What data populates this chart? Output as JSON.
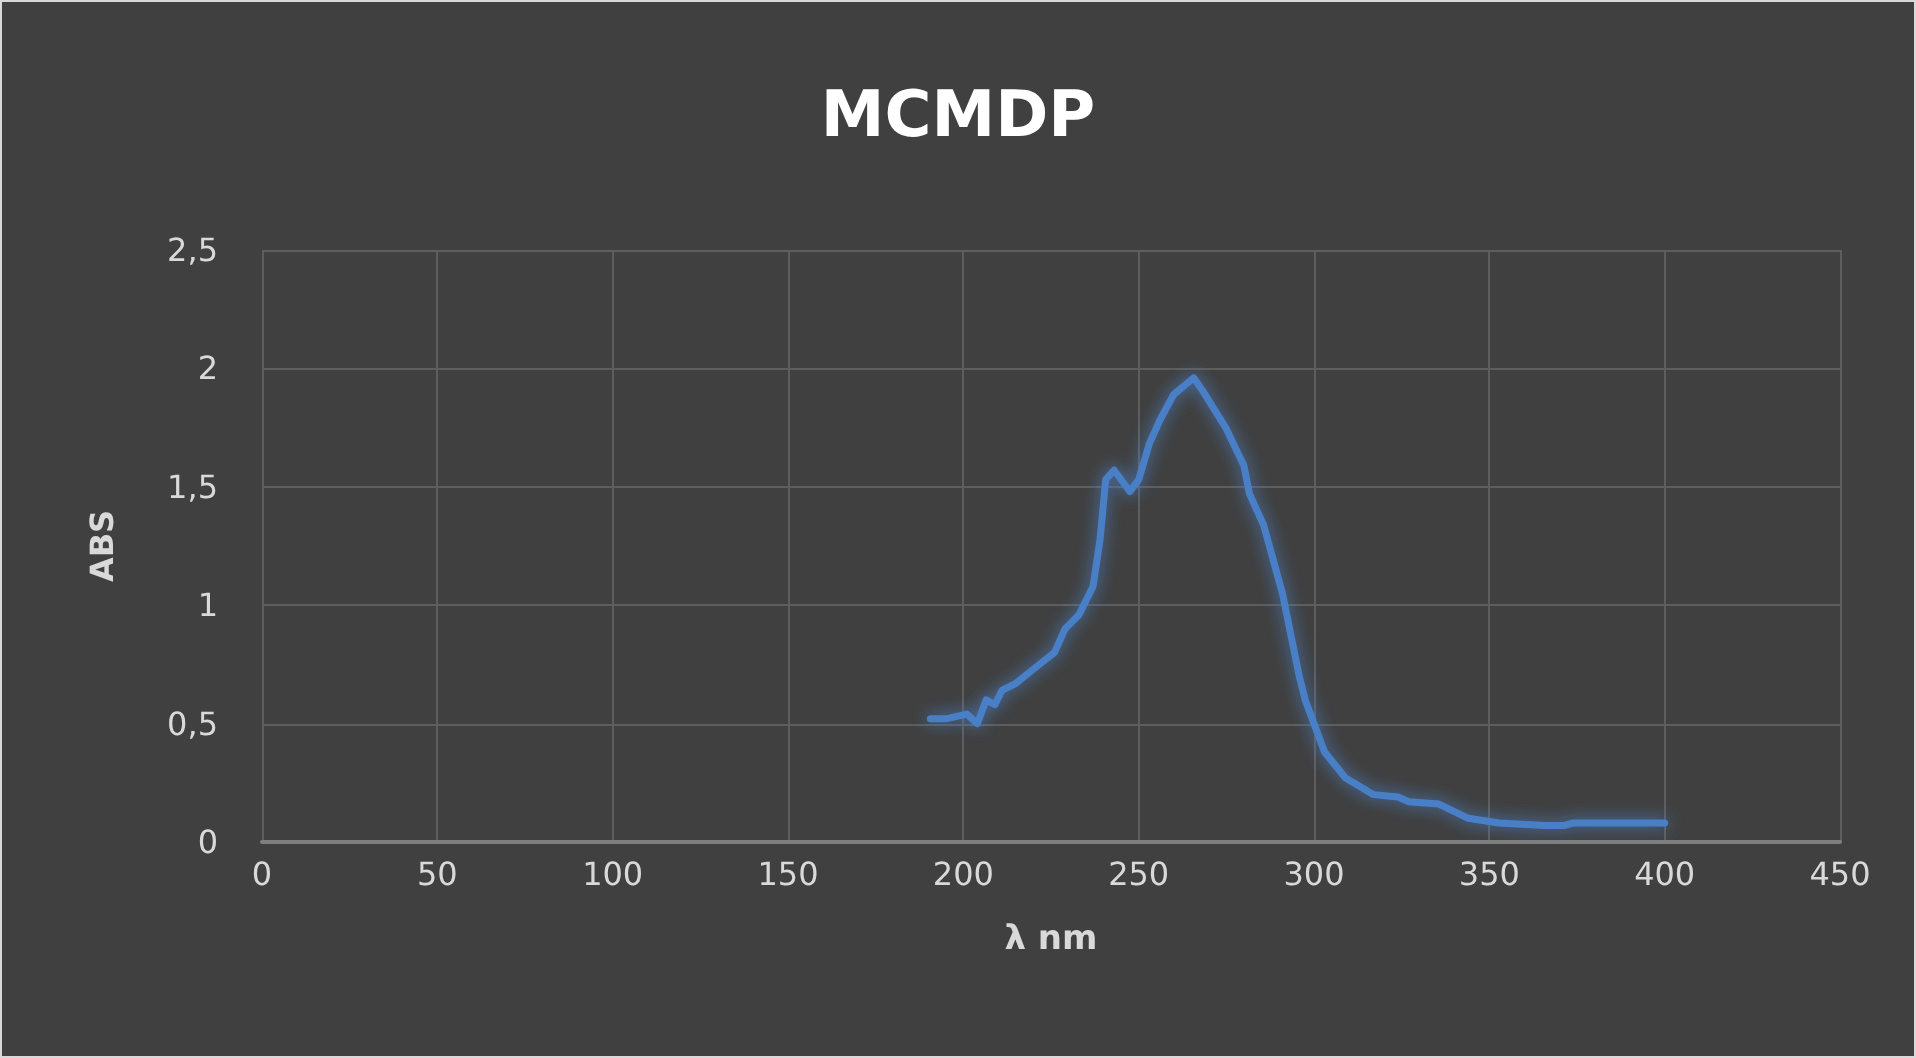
{
  "chart_data": {
    "type": "line",
    "title": "MCMDP",
    "xlabel": "λ nm",
    "ylabel": "ABS",
    "xlim": [
      0,
      450
    ],
    "xticks": [
      0,
      50,
      100,
      150,
      200,
      250,
      300,
      350,
      400,
      450
    ],
    "ylim": [
      0,
      2.5
    ],
    "yticks": [
      {
        "value": 0,
        "label": "0"
      },
      {
        "value": 0.5,
        "label": "0,5"
      },
      {
        "value": 1,
        "label": "1"
      },
      {
        "value": 1.5,
        "label": "1,5"
      },
      {
        "value": 2,
        "label": "2"
      },
      {
        "value": 2.5,
        "label": "2,5"
      }
    ],
    "grid": true,
    "marker": "none",
    "line_style": "solid",
    "series": [
      {
        "color": "#4a7fc6",
        "x": [
          190.6,
          195,
          201,
          204,
          206.5,
          209,
          211,
          215,
          220,
          226,
          229,
          233,
          237,
          239,
          240.6,
          243,
          247.5,
          250,
          253,
          256,
          260,
          265.7,
          268.5,
          274.8,
          280,
          281.6,
          285.6,
          291,
          295.8,
          297.5,
          303,
          309,
          317,
          324,
          327,
          335.6,
          344,
          352.7,
          365.8,
          371.5,
          373.8,
          400
        ],
        "values": [
          0.52,
          0.52,
          0.54,
          0.5,
          0.6,
          0.58,
          0.64,
          0.67,
          0.73,
          0.8,
          0.9,
          0.96,
          1.08,
          1.28,
          1.53,
          1.57,
          1.48,
          1.53,
          1.68,
          1.78,
          1.89,
          1.96,
          1.9,
          1.75,
          1.59,
          1.47,
          1.34,
          1.05,
          0.7,
          0.6,
          0.38,
          0.27,
          0.2,
          0.19,
          0.17,
          0.16,
          0.1,
          0.08,
          0.07,
          0.07,
          0.08,
          0.08
        ]
      }
    ]
  }
}
